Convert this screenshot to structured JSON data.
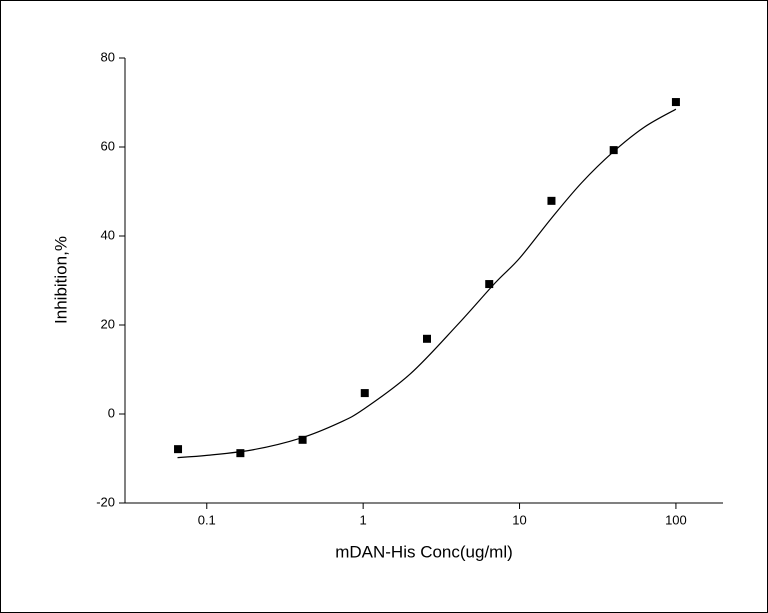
{
  "chart_data": {
    "type": "scatter",
    "x_label": "mDAN-His Conc(ug/ml)",
    "y_label": "Inhibition,%",
    "xscale": "log",
    "xlim": [
      0.03,
      200
    ],
    "xticks": [
      0.1,
      1,
      10,
      100
    ],
    "ylim": [
      -20,
      80
    ],
    "yticks": [
      -20,
      0,
      20,
      40,
      60,
      80
    ],
    "series": [
      {
        "color": "#000000",
        "marker": "square",
        "x": [
          0.0655,
          0.164,
          0.41,
          1.024,
          2.56,
          6.4,
          16,
          40,
          100
        ],
        "values": [
          -7.9,
          -8.8,
          -5.8,
          4.7,
          16.9,
          29.2,
          47.9,
          59.3,
          70.1
        ]
      },
      {
        "color": "#000000",
        "line": true,
        "x": [
          0.065,
          0.1,
          0.2,
          0.4,
          0.7,
          1,
          2,
          4,
          7,
          10,
          16,
          25,
          40,
          63,
          100
        ],
        "values": [
          -9.8,
          -9.3,
          -8,
          -5.4,
          -2,
          1,
          9,
          20,
          29.5,
          35,
          44,
          52,
          59,
          64.5,
          68.5
        ]
      }
    ]
  }
}
